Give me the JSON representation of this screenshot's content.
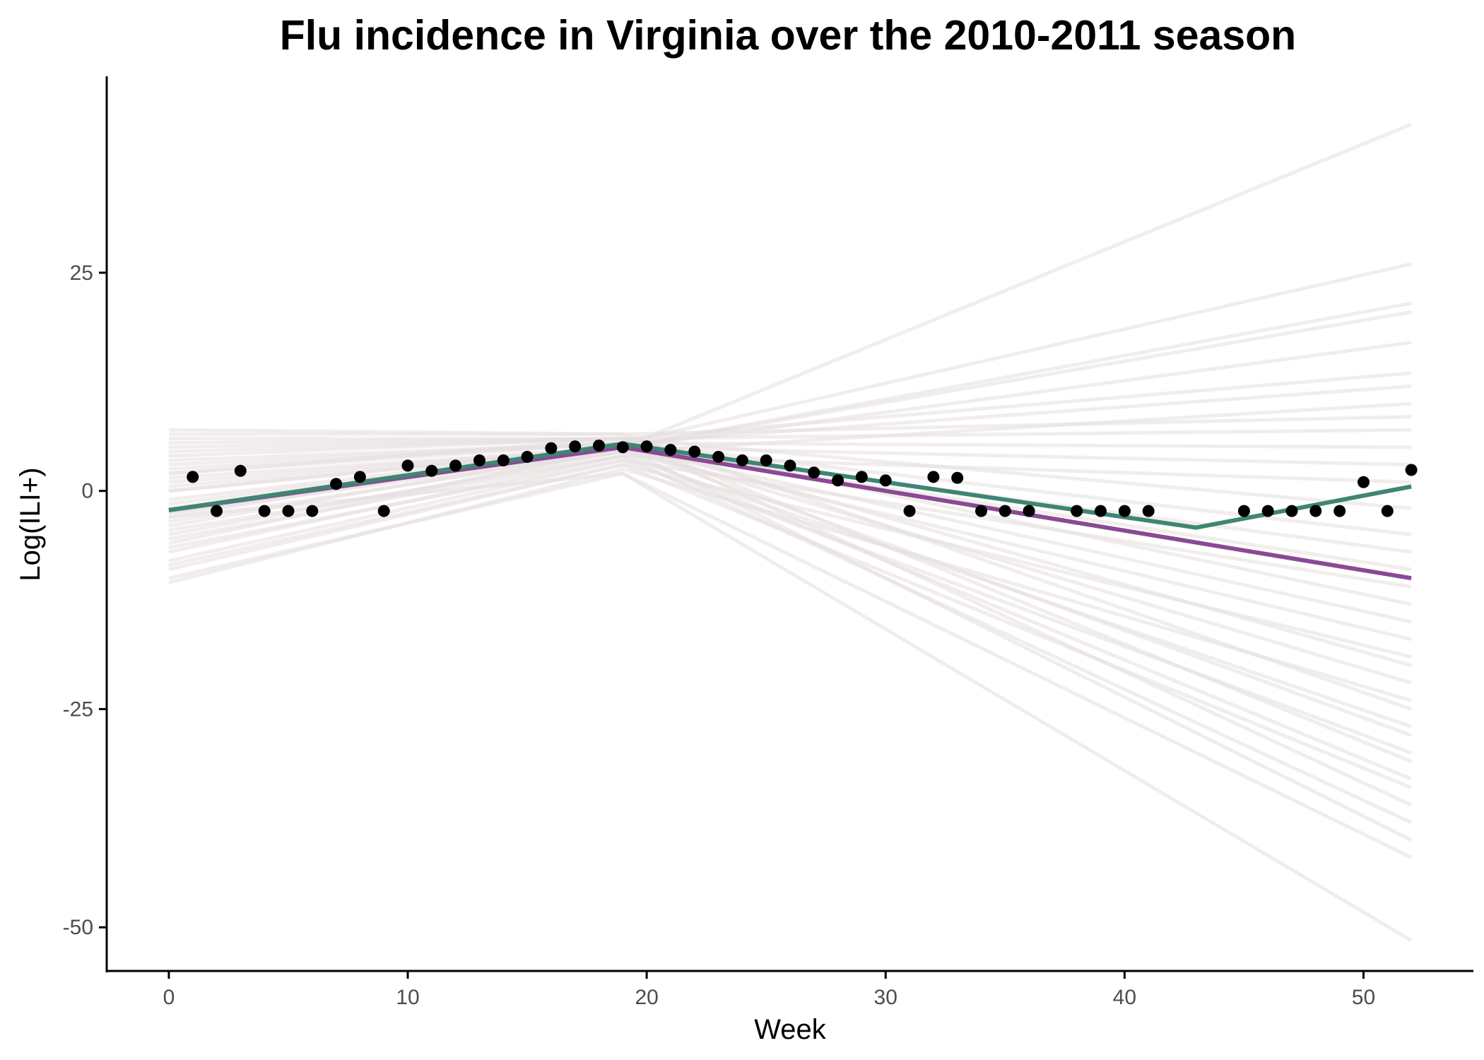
{
  "chart_data": {
    "type": "line",
    "title": "Flu incidence in Virginia over the 2010-2011 season",
    "xlabel": "Week",
    "ylabel": "Log(ILI+)",
    "xlim": [
      -2.6,
      54.6
    ],
    "ylim": [
      -55,
      47.5
    ],
    "x_ticks": [
      0,
      10,
      20,
      30,
      40,
      50
    ],
    "y_ticks": [
      25,
      0,
      -25,
      -50
    ],
    "grid": false,
    "legend": "none",
    "colors": {
      "observed_points": "#000000",
      "fit_line_1": "#8a4a93",
      "fit_line_2": "#3f8574",
      "posterior_samples": "#e6dfdf"
    },
    "observed": {
      "x": [
        1,
        2,
        3,
        4,
        5,
        6,
        7,
        8,
        9,
        10,
        11,
        12,
        13,
        14,
        15,
        16,
        17,
        18,
        19,
        20,
        21,
        22,
        23,
        24,
        25,
        26,
        27,
        28,
        29,
        30,
        31,
        32,
        33,
        34,
        35,
        36,
        38,
        39,
        40,
        41,
        45,
        46,
        47,
        48,
        49,
        50,
        51,
        52
      ],
      "y": [
        1.6,
        -2.3,
        2.3,
        -2.3,
        -2.3,
        -2.3,
        0.8,
        1.6,
        -2.3,
        2.9,
        2.3,
        2.9,
        3.5,
        3.5,
        3.9,
        4.9,
        5.1,
        5.2,
        5.0,
        5.1,
        4.7,
        4.5,
        3.9,
        3.5,
        3.5,
        2.9,
        2.1,
        1.2,
        1.6,
        1.2,
        -2.3,
        1.6,
        1.5,
        -2.3,
        -2.3,
        -2.3,
        -2.3,
        -2.3,
        -2.3,
        -2.3,
        -2.3,
        -2.3,
        -2.3,
        -2.3,
        -2.3,
        1.0,
        -2.3,
        2.4
      ]
    },
    "series": [
      {
        "x": [
          0,
          19,
          52
        ],
        "y": [
          -2.2,
          5.0,
          -10.0
        ]
      },
      {
        "x": [
          0,
          19,
          43,
          52
        ],
        "y": [
          -2.2,
          5.4,
          -4.2,
          0.5
        ]
      }
    ],
    "posterior_samples": [
      {
        "x": [
          0,
          19,
          52
        ],
        "y": [
          -6.0,
          5.0,
          42.0
        ]
      },
      {
        "x": [
          0,
          19,
          52
        ],
        "y": [
          -3.0,
          5.5,
          26.0
        ]
      },
      {
        "x": [
          0,
          19,
          52
        ],
        "y": [
          -4.0,
          5.0,
          21.5
        ]
      },
      {
        "x": [
          0,
          19,
          52
        ],
        "y": [
          -2.5,
          5.0,
          20.5
        ]
      },
      {
        "x": [
          0,
          19,
          52
        ],
        "y": [
          0.0,
          5.0,
          17.0
        ]
      },
      {
        "x": [
          0,
          19,
          52
        ],
        "y": [
          4.0,
          6.0,
          13.5
        ]
      },
      {
        "x": [
          0,
          19,
          52
        ],
        "y": [
          2.0,
          5.5,
          12.0
        ]
      },
      {
        "x": [
          0,
          19,
          52
        ],
        "y": [
          -5.0,
          4.5,
          10.0
        ]
      },
      {
        "x": [
          0,
          19,
          52
        ],
        "y": [
          7.0,
          6.5,
          8.5
        ]
      },
      {
        "x": [
          0,
          19,
          52
        ],
        "y": [
          6.0,
          6.0,
          7.0
        ]
      },
      {
        "x": [
          0,
          19,
          52
        ],
        "y": [
          3.0,
          5.5,
          5.0
        ]
      },
      {
        "x": [
          0,
          19,
          52
        ],
        "y": [
          -1.0,
          5.0,
          3.0
        ]
      },
      {
        "x": [
          0,
          19,
          52
        ],
        "y": [
          -7.0,
          4.0,
          1.0
        ]
      },
      {
        "x": [
          0,
          19,
          52
        ],
        "y": [
          5.0,
          6.0,
          -2.0
        ]
      },
      {
        "x": [
          0,
          19,
          52
        ],
        "y": [
          2.5,
          5.5,
          -5.0
        ]
      },
      {
        "x": [
          0,
          19,
          52
        ],
        "y": [
          -2.0,
          5.0,
          -7.0
        ]
      },
      {
        "x": [
          0,
          19,
          52
        ],
        "y": [
          1.0,
          5.0,
          -9.0
        ]
      },
      {
        "x": [
          0,
          19,
          52
        ],
        "y": [
          -8.0,
          3.5,
          -11.0
        ]
      },
      {
        "x": [
          0,
          19,
          52
        ],
        "y": [
          4.5,
          6.0,
          -13.0
        ]
      },
      {
        "x": [
          0,
          19,
          52
        ],
        "y": [
          0.5,
          5.0,
          -15.0
        ]
      },
      {
        "x": [
          0,
          19,
          52
        ],
        "y": [
          -3.5,
          4.5,
          -17.0
        ]
      },
      {
        "x": [
          0,
          19,
          52
        ],
        "y": [
          -9.0,
          3.0,
          -19.0
        ]
      },
      {
        "x": [
          0,
          19,
          52
        ],
        "y": [
          3.5,
          5.5,
          -20.0
        ]
      },
      {
        "x": [
          0,
          19,
          52
        ],
        "y": [
          -1.5,
          5.0,
          -22.0
        ]
      },
      {
        "x": [
          0,
          19,
          52
        ],
        "y": [
          -10.5,
          2.5,
          -24.0
        ]
      },
      {
        "x": [
          0,
          19,
          52
        ],
        "y": [
          6.5,
          6.5,
          -25.0
        ]
      },
      {
        "x": [
          0,
          19,
          52
        ],
        "y": [
          -4.5,
          4.0,
          -27.0
        ]
      },
      {
        "x": [
          0,
          19,
          52
        ],
        "y": [
          1.5,
          5.0,
          -28.0
        ]
      },
      {
        "x": [
          0,
          19,
          52
        ],
        "y": [
          -6.5,
          3.5,
          -30.0
        ]
      },
      {
        "x": [
          0,
          19,
          52
        ],
        "y": [
          2.0,
          6.0,
          -31.0
        ]
      },
      {
        "x": [
          0,
          19,
          52
        ],
        "y": [
          -2.5,
          4.5,
          -33.0
        ]
      },
      {
        "x": [
          0,
          19,
          52
        ],
        "y": [
          -8.5,
          3.0,
          -34.0
        ]
      },
      {
        "x": [
          0,
          19,
          52
        ],
        "y": [
          5.5,
          6.0,
          -36.0
        ]
      },
      {
        "x": [
          0,
          19,
          52
        ],
        "y": [
          -5.5,
          4.0,
          -38.0
        ]
      },
      {
        "x": [
          0,
          19,
          52
        ],
        "y": [
          0.0,
          5.0,
          -40.0
        ]
      },
      {
        "x": [
          0,
          19,
          52
        ],
        "y": [
          -10.0,
          2.0,
          -42.0
        ]
      },
      {
        "x": [
          0,
          19,
          52
        ],
        "y": [
          -3.0,
          2.0,
          -51.5
        ]
      }
    ]
  }
}
